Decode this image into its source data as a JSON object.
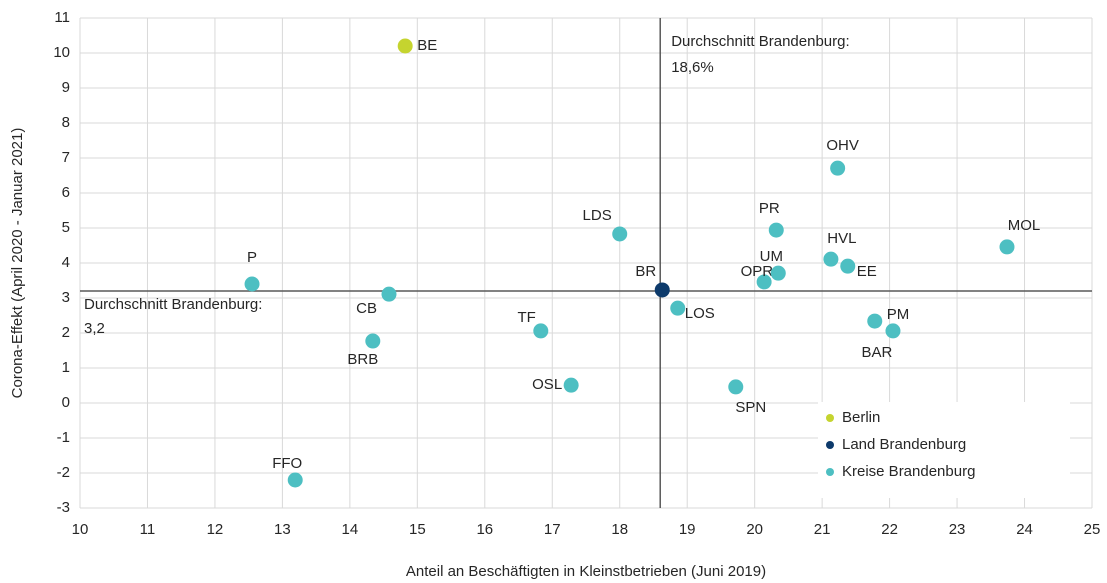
{
  "chart_data": {
    "type": "scatter",
    "xlabel": "Anteil an Beschäftigten in Kleinstbetrieben (Juni 2019)",
    "ylabel": "Corona-Effekt (April 2020 - Januar 2021)",
    "xlim": [
      10,
      25
    ],
    "xticks": [
      10,
      11,
      12,
      13,
      14,
      15,
      16,
      17,
      18,
      19,
      20,
      21,
      22,
      23,
      24,
      25
    ],
    "ylim": [
      -3,
      11
    ],
    "yticks": [
      -3,
      -2,
      -1,
      0,
      1,
      2,
      3,
      4,
      5,
      6,
      7,
      8,
      9,
      10,
      11
    ],
    "grid": true,
    "legend": "lower right",
    "reference_lines": {
      "x": 18.6,
      "y": 3.2
    },
    "annotations": {
      "x_line": [
        "Durchschnitt Brandenburg:",
        "18,6%"
      ],
      "y_line": [
        "Durchschnitt Brandenburg:",
        "3,2"
      ]
    },
    "series": [
      {
        "name": "Berlin",
        "color": "#c5d42f",
        "x": [
          14.82
        ],
        "y": [
          10.2
        ],
        "labels": [
          "BE"
        ]
      },
      {
        "name": "Land Brandenburg",
        "color": "#0d3a6b",
        "x": [
          18.63
        ],
        "y": [
          3.23
        ],
        "labels": [
          "BR"
        ]
      },
      {
        "name": "Kreise Brandenburg",
        "color": "#4dbfc2",
        "x": [
          12.55,
          14.58,
          14.34,
          13.19,
          16.83,
          17.28,
          18.0,
          18.86,
          19.72,
          20.32,
          20.14,
          20.35,
          21.23,
          21.13,
          21.38,
          21.78,
          22.05,
          23.74
        ],
        "y": [
          3.4,
          3.11,
          1.77,
          -2.2,
          2.06,
          0.51,
          4.83,
          2.71,
          0.46,
          4.94,
          3.46,
          3.71,
          6.71,
          4.11,
          3.91,
          2.34,
          2.06,
          4.46
        ],
        "labels": [
          "P",
          "CB",
          "BRB",
          "FFO",
          "TF",
          "OSL",
          "LDS",
          "LOS",
          "SPN",
          "PR",
          "OPR",
          "UM",
          "OHV",
          "HVL",
          "EE",
          "PM",
          "BAR",
          "MOL"
        ]
      }
    ]
  }
}
